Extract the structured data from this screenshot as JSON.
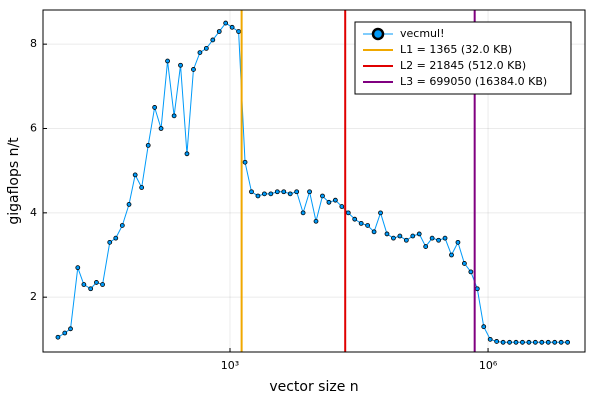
{
  "chart_data": {
    "type": "line",
    "xlabel": "vector size n",
    "ylabel": "gigaflops n/t",
    "log_x": true,
    "grid": true,
    "legend": "top-right",
    "xlim": [
      6.7,
      13400000
    ],
    "ylim": [
      0.7,
      8.81
    ],
    "xticks": [
      {
        "value": 1000,
        "label": "10³"
      },
      {
        "value": 1000000,
        "label": "10⁶"
      }
    ],
    "yticks": [
      2,
      4,
      6,
      8
    ],
    "x": [
      10,
      12,
      14,
      17,
      20,
      24,
      28,
      33,
      40,
      47,
      56,
      67,
      79,
      94,
      112,
      133,
      158,
      188,
      224,
      266,
      316,
      376,
      447,
      531,
      631,
      750,
      891,
      1059,
      1259,
      1496,
      1778,
      2113,
      2512,
      2985,
      3548,
      4217,
      5012,
      5957,
      7079,
      8414,
      10000,
      11885,
      14125,
      16788,
      19953,
      23714,
      28184,
      33497,
      39811,
      47315,
      56234,
      66834,
      79433,
      94406,
      112202,
      133352,
      158489,
      188365,
      223872,
      266073,
      316228,
      375837,
      446684,
      530884,
      630957,
      749894,
      891251,
      1059254,
      1258925,
      1496236,
      1778279,
      2113489,
      2511886,
      2985383,
      3548134,
      4216965,
      5011872,
      5956621,
      7079458,
      8413951
    ],
    "series": [
      {
        "name": "vecmul!",
        "color": "#009af9",
        "marker_edge": "#000000",
        "values": [
          1.05,
          1.15,
          1.25,
          2.7,
          2.3,
          2.2,
          2.35,
          2.3,
          3.3,
          3.4,
          3.7,
          4.2,
          4.9,
          4.6,
          5.6,
          6.5,
          6.0,
          7.6,
          6.3,
          7.5,
          5.4,
          7.4,
          7.8,
          7.9,
          8.1,
          8.3,
          8.5,
          8.4,
          8.3,
          5.2,
          4.5,
          4.4,
          4.45,
          4.45,
          4.5,
          4.5,
          4.45,
          4.5,
          4.0,
          4.5,
          3.8,
          4.4,
          4.25,
          4.3,
          4.15,
          4.0,
          3.85,
          3.75,
          3.7,
          3.55,
          4.0,
          3.5,
          3.4,
          3.45,
          3.35,
          3.45,
          3.5,
          3.2,
          3.4,
          3.35,
          3.4,
          3.0,
          3.3,
          2.8,
          2.6,
          2.2,
          1.3,
          1.0,
          0.95,
          0.93,
          0.93,
          0.93,
          0.93,
          0.93,
          0.93,
          0.93,
          0.93,
          0.93,
          0.93,
          0.93
        ]
      }
    ],
    "vlines": [
      {
        "name": "L1 = 1365 (32.0 KB)",
        "color": "#f0a800",
        "x": 1365
      },
      {
        "name": "L2 = 21845 (512.0 KB)",
        "color": "#e00000",
        "x": 21845
      },
      {
        "name": "L3 = 699050 (16384.0 KB)",
        "color": "#800080",
        "x": 699050
      }
    ]
  }
}
